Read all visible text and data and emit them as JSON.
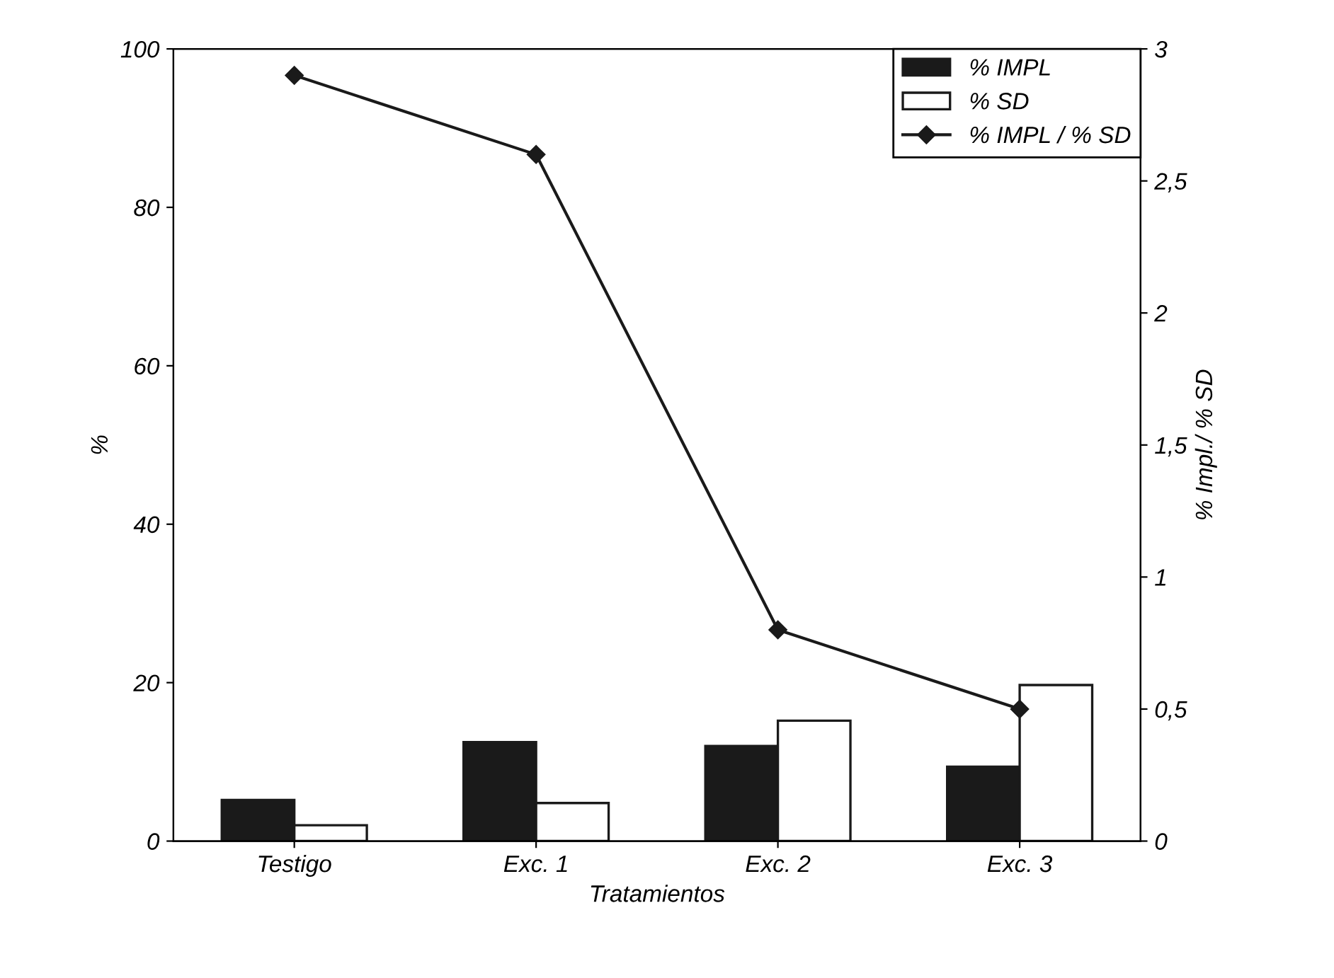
{
  "chart_data": {
    "type": "bar",
    "xlabel": "Tratamientos",
    "ylabel": "%",
    "y2label": "% Impl./ % SD",
    "categories": [
      "Testigo",
      "Exc. 1",
      "Exc. 2",
      "Exc. 3"
    ],
    "series": [
      {
        "name": "% IMPL",
        "color": "#1a1a1a",
        "values": [
          5.2,
          12.5,
          12.0,
          9.4
        ]
      },
      {
        "name": "% SD",
        "color": "#ffffff",
        "values": [
          2.0,
          4.8,
          15.2,
          19.7
        ]
      },
      {
        "name": "% IMPL / % SD",
        "type": "line",
        "axis": "y2",
        "color": "#1a1a1a",
        "marker": "diamond",
        "values": [
          2.9,
          2.6,
          0.8,
          0.5
        ]
      }
    ],
    "ylim": [
      0,
      100
    ],
    "yticks": [
      0,
      20,
      40,
      60,
      80,
      100
    ],
    "y2lim": [
      0,
      3
    ],
    "y2ticks": [
      0,
      {
        "value": 0.5,
        "label": "0,5"
      },
      1,
      {
        "value": 1.5,
        "label": "1,5"
      },
      2,
      {
        "value": 2.5,
        "label": "2,5"
      },
      3
    ],
    "legend": "top right",
    "grid": false
  }
}
